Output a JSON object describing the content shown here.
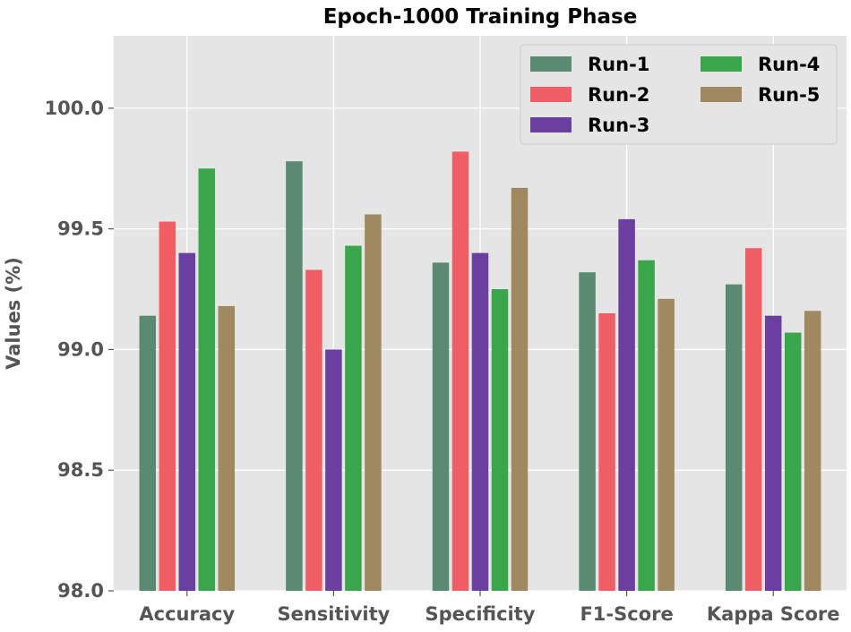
{
  "chart_data": {
    "type": "bar",
    "title": "Epoch-1000 Training Phase",
    "xlabel": "",
    "ylabel": "Values (%)",
    "ylim": [
      98.0,
      100.3
    ],
    "yticks": [
      "98.0",
      "98.5",
      "99.0",
      "99.5",
      "100.0"
    ],
    "grid": true,
    "legend_position": "top-right",
    "legend_columns": 2,
    "categories": [
      "Accuracy",
      "Sensitivity",
      "Specificity",
      "F1-Score",
      "Kappa Score"
    ],
    "series": [
      {
        "name": "Run-1",
        "color": "#5b8a72",
        "values": [
          99.14,
          99.78,
          99.36,
          99.32,
          99.27
        ]
      },
      {
        "name": "Run-2",
        "color": "#ef5e64",
        "values": [
          99.53,
          99.33,
          99.82,
          99.15,
          99.42
        ]
      },
      {
        "name": "Run-3",
        "color": "#6b3fa0",
        "values": [
          99.4,
          99.0,
          99.4,
          99.54,
          99.14
        ]
      },
      {
        "name": "Run-4",
        "color": "#3aa64c",
        "values": [
          99.75,
          99.43,
          99.25,
          99.37,
          99.07
        ]
      },
      {
        "name": "Run-5",
        "color": "#a08860",
        "values": [
          99.18,
          99.56,
          99.67,
          99.21,
          99.16
        ]
      }
    ]
  },
  "colors": {
    "plot_background": "#e5e5e5",
    "grid": "#ffffff",
    "axis_text": "#555555",
    "title_text": "#000000"
  }
}
